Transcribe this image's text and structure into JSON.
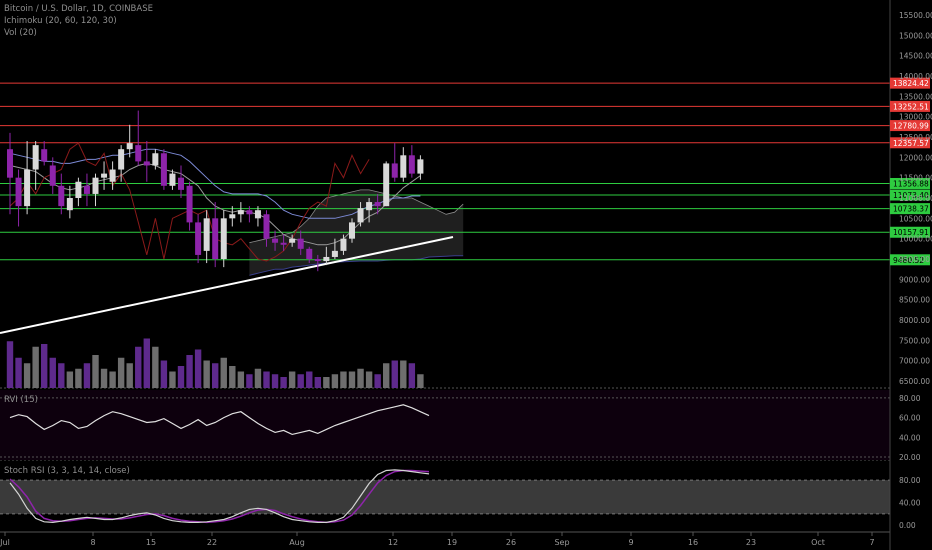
{
  "legend": {
    "symbol": "Bitcoin / U.S. Dollar, 1D, COINBASE",
    "ichimoku": "Ichimoku (20, 60, 120, 30)",
    "volume": "Vol (20)"
  },
  "rvi_label": "RVI (15)",
  "stoch_label": "Stoch RSI (3, 3, 14, 14, close)",
  "colors": {
    "bull_candle": "#d9d9d9",
    "bear_candle": "#8e24aa",
    "resistance": "#e53935",
    "support": "#2ecc40",
    "kijun": "#7c8ad6",
    "cloud_edge": "#3a3f8c",
    "trendline": "#ffffff",
    "stoch_k": "#d4d4d4",
    "stoch_d": "#8e24aa"
  },
  "chart_data": [
    {
      "type": "candlestick",
      "title": "",
      "price_axis_ticks": [
        "15500.00",
        "15000.00",
        "14500.00",
        "14000.00",
        "13500.00",
        "13000.00",
        "12500.00",
        "12000.00",
        "11500.00",
        "11000.00",
        "10500.00",
        "10000.00",
        "9500.00",
        "9000.00",
        "8500.00",
        "8000.00",
        "7500.00",
        "7000.00",
        "6500.00"
      ],
      "x_axis_ticks": [
        "Jul",
        "8",
        "15",
        "22",
        "Aug",
        "12",
        "19",
        "26",
        "Sep",
        "9",
        "16",
        "23",
        "Oct",
        "7"
      ],
      "resistance_levels": [
        {
          "value": 13824.42,
          "label": "13824.42"
        },
        {
          "value": 13252.51,
          "label": "13252.51"
        },
        {
          "value": 12780.99,
          "label": "12780.99"
        },
        {
          "value": 12357.57,
          "label": "12357.57"
        }
      ],
      "support_levels": [
        {
          "value": 11356.88,
          "label": "11356.88"
        },
        {
          "value": 11073.4,
          "label": "11073.40"
        },
        {
          "value": 10738.37,
          "label": "10738.37"
        },
        {
          "value": 10157.91,
          "label": "10157.91"
        },
        {
          "value": 9480.52,
          "label": "9480.52"
        }
      ],
      "candles": [
        {
          "o": 12200,
          "h": 12600,
          "l": 10600,
          "c": 11500
        },
        {
          "o": 11500,
          "h": 11700,
          "l": 10300,
          "c": 10800
        },
        {
          "o": 10800,
          "h": 12400,
          "l": 10600,
          "c": 11700
        },
        {
          "o": 11700,
          "h": 12400,
          "l": 11200,
          "c": 12300
        },
        {
          "o": 12200,
          "h": 12400,
          "l": 11800,
          "c": 11900
        },
        {
          "o": 11800,
          "h": 12000,
          "l": 11100,
          "c": 11300
        },
        {
          "o": 11300,
          "h": 11600,
          "l": 10600,
          "c": 10800
        },
        {
          "o": 10700,
          "h": 11300,
          "l": 10500,
          "c": 11000
        },
        {
          "o": 11000,
          "h": 11500,
          "l": 10800,
          "c": 11400
        },
        {
          "o": 11300,
          "h": 11600,
          "l": 10800,
          "c": 11100
        },
        {
          "o": 11100,
          "h": 11600,
          "l": 10800,
          "c": 11500
        },
        {
          "o": 11500,
          "h": 11900,
          "l": 11200,
          "c": 11600
        },
        {
          "o": 11400,
          "h": 11900,
          "l": 11200,
          "c": 11700
        },
        {
          "o": 11700,
          "h": 12300,
          "l": 11400,
          "c": 12200
        },
        {
          "o": 12200,
          "h": 12800,
          "l": 12000,
          "c": 12350
        },
        {
          "o": 12300,
          "h": 13150,
          "l": 11800,
          "c": 11900
        },
        {
          "o": 11900,
          "h": 12400,
          "l": 11400,
          "c": 11800
        },
        {
          "o": 11800,
          "h": 12200,
          "l": 11700,
          "c": 12100
        },
        {
          "o": 12100,
          "h": 12200,
          "l": 11200,
          "c": 11300
        },
        {
          "o": 11300,
          "h": 11700,
          "l": 11200,
          "c": 11600
        },
        {
          "o": 11500,
          "h": 11800,
          "l": 11000,
          "c": 11200
        },
        {
          "o": 11300,
          "h": 11400,
          "l": 10200,
          "c": 10400
        },
        {
          "o": 10400,
          "h": 10600,
          "l": 9400,
          "c": 9600
        },
        {
          "o": 9700,
          "h": 10700,
          "l": 9400,
          "c": 10500
        },
        {
          "o": 10500,
          "h": 10900,
          "l": 9300,
          "c": 9500
        },
        {
          "o": 9500,
          "h": 10700,
          "l": 9300,
          "c": 10500
        },
        {
          "o": 10500,
          "h": 10800,
          "l": 10300,
          "c": 10600
        },
        {
          "o": 10600,
          "h": 10900,
          "l": 10400,
          "c": 10700
        },
        {
          "o": 10700,
          "h": 10800,
          "l": 10400,
          "c": 10600
        },
        {
          "o": 10500,
          "h": 10800,
          "l": 10300,
          "c": 10700
        },
        {
          "o": 10600,
          "h": 10700,
          "l": 9800,
          "c": 10000
        },
        {
          "o": 10000,
          "h": 10200,
          "l": 9700,
          "c": 9900
        },
        {
          "o": 9900,
          "h": 10100,
          "l": 9700,
          "c": 9850
        },
        {
          "o": 9900,
          "h": 10100,
          "l": 9800,
          "c": 10000
        },
        {
          "o": 10000,
          "h": 10200,
          "l": 9600,
          "c": 9750
        },
        {
          "o": 9750,
          "h": 9800,
          "l": 9400,
          "c": 9500
        },
        {
          "o": 9500,
          "h": 9600,
          "l": 9200,
          "c": 9450
        },
        {
          "o": 9450,
          "h": 9800,
          "l": 9350,
          "c": 9550
        },
        {
          "o": 9550,
          "h": 10000,
          "l": 9500,
          "c": 9700
        },
        {
          "o": 9700,
          "h": 10100,
          "l": 9600,
          "c": 10000
        },
        {
          "o": 10000,
          "h": 10500,
          "l": 9900,
          "c": 10400
        },
        {
          "o": 10400,
          "h": 10900,
          "l": 10300,
          "c": 10750
        },
        {
          "o": 10700,
          "h": 11000,
          "l": 10400,
          "c": 10900
        },
        {
          "o": 10900,
          "h": 11100,
          "l": 10600,
          "c": 10800
        },
        {
          "o": 10800,
          "h": 11900,
          "l": 10800,
          "c": 11850
        },
        {
          "o": 11850,
          "h": 12350,
          "l": 11400,
          "c": 11500
        },
        {
          "o": 11500,
          "h": 12250,
          "l": 11400,
          "c": 12050
        },
        {
          "o": 12050,
          "h": 12300,
          "l": 11500,
          "c": 11600
        },
        {
          "o": 11600,
          "h": 12050,
          "l": 11450,
          "c": 11950
        }
      ],
      "tenkan": [
        11800,
        11750,
        11700,
        11650,
        11500,
        11350,
        11250,
        11200,
        11250,
        11300,
        11400,
        11450,
        11500,
        11550,
        11700,
        11800,
        11850,
        11800,
        11700,
        11650,
        11600,
        11450,
        11300,
        11000,
        10800,
        10700,
        10650,
        10700,
        10650,
        10600,
        10500,
        10300,
        10100,
        10000,
        9950,
        9900,
        9850,
        9850,
        9900,
        10000,
        10200,
        10400,
        10550,
        10650,
        10850,
        11050,
        11250,
        11400,
        11550
      ],
      "kijun": [
        12100,
        12050,
        12000,
        11950,
        11900,
        11900,
        11850,
        11850,
        11900,
        11950,
        11950,
        12000,
        12050,
        12050,
        12100,
        12150,
        12200,
        12200,
        12150,
        12100,
        12050,
        11900,
        11700,
        11500,
        11300,
        11150,
        11100,
        11100,
        11100,
        11100,
        11050,
        10900,
        10700,
        10600,
        10550,
        10500,
        10500,
        10500,
        10500,
        10550,
        10600,
        10700,
        10800,
        10850,
        10950,
        11000,
        11000,
        11050,
        11050
      ],
      "volume": [
        0.85,
        0.55,
        0.45,
        0.75,
        0.8,
        0.55,
        0.45,
        0.3,
        0.35,
        0.45,
        0.6,
        0.35,
        0.3,
        0.55,
        0.45,
        0.75,
        0.9,
        0.75,
        0.5,
        0.3,
        0.4,
        0.6,
        0.7,
        0.5,
        0.45,
        0.55,
        0.4,
        0.3,
        0.25,
        0.35,
        0.3,
        0.25,
        0.2,
        0.3,
        0.25,
        0.3,
        0.2,
        0.2,
        0.25,
        0.3,
        0.3,
        0.35,
        0.3,
        0.25,
        0.45,
        0.5,
        0.5,
        0.45,
        0.25
      ],
      "volume_ticks": []
    },
    {
      "type": "line",
      "title": "RVI (15)",
      "y_ticks": [
        "80.00",
        "60.00",
        "40.00",
        "20.00"
      ],
      "ylim": [
        20,
        85
      ],
      "series": [
        {
          "values": [
            60,
            63,
            61,
            54,
            48,
            52,
            57,
            55,
            49,
            51,
            57,
            62,
            66,
            64,
            61,
            58,
            55,
            56,
            59,
            54,
            49,
            53,
            58,
            52,
            55,
            60,
            64,
            66,
            60,
            54,
            49,
            45,
            47,
            43,
            45,
            47,
            44,
            48,
            52,
            55,
            58,
            61,
            64,
            67,
            69,
            71,
            73,
            70,
            66,
            62
          ]
        }
      ]
    },
    {
      "type": "line",
      "title": "Stoch RSI (3, 3, 14, 14, close)",
      "y_ticks": [
        "80.00",
        "40.00",
        "0.00"
      ],
      "ylim": [
        -5,
        105
      ],
      "band": [
        20,
        80
      ],
      "series": [
        {
          "values": [
            75,
            55,
            30,
            12,
            6,
            5,
            7,
            10,
            12,
            14,
            12,
            10,
            10,
            13,
            17,
            20,
            22,
            18,
            12,
            8,
            6,
            5,
            5,
            6,
            8,
            10,
            15,
            22,
            28,
            30,
            28,
            22,
            15,
            10,
            8,
            6,
            5,
            5,
            8,
            14,
            30,
            52,
            74,
            90,
            97,
            98,
            97,
            95,
            93,
            91
          ]
        },
        {
          "values": [
            82,
            68,
            50,
            25,
            12,
            8,
            7,
            8,
            10,
            12,
            13,
            12,
            11,
            11,
            13,
            16,
            19,
            20,
            17,
            12,
            9,
            7,
            6,
            5,
            6,
            8,
            11,
            16,
            22,
            27,
            28,
            26,
            20,
            15,
            11,
            8,
            6,
            5,
            6,
            9,
            18,
            35,
            55,
            75,
            88,
            95,
            97,
            97,
            96,
            95
          ]
        }
      ]
    }
  ]
}
